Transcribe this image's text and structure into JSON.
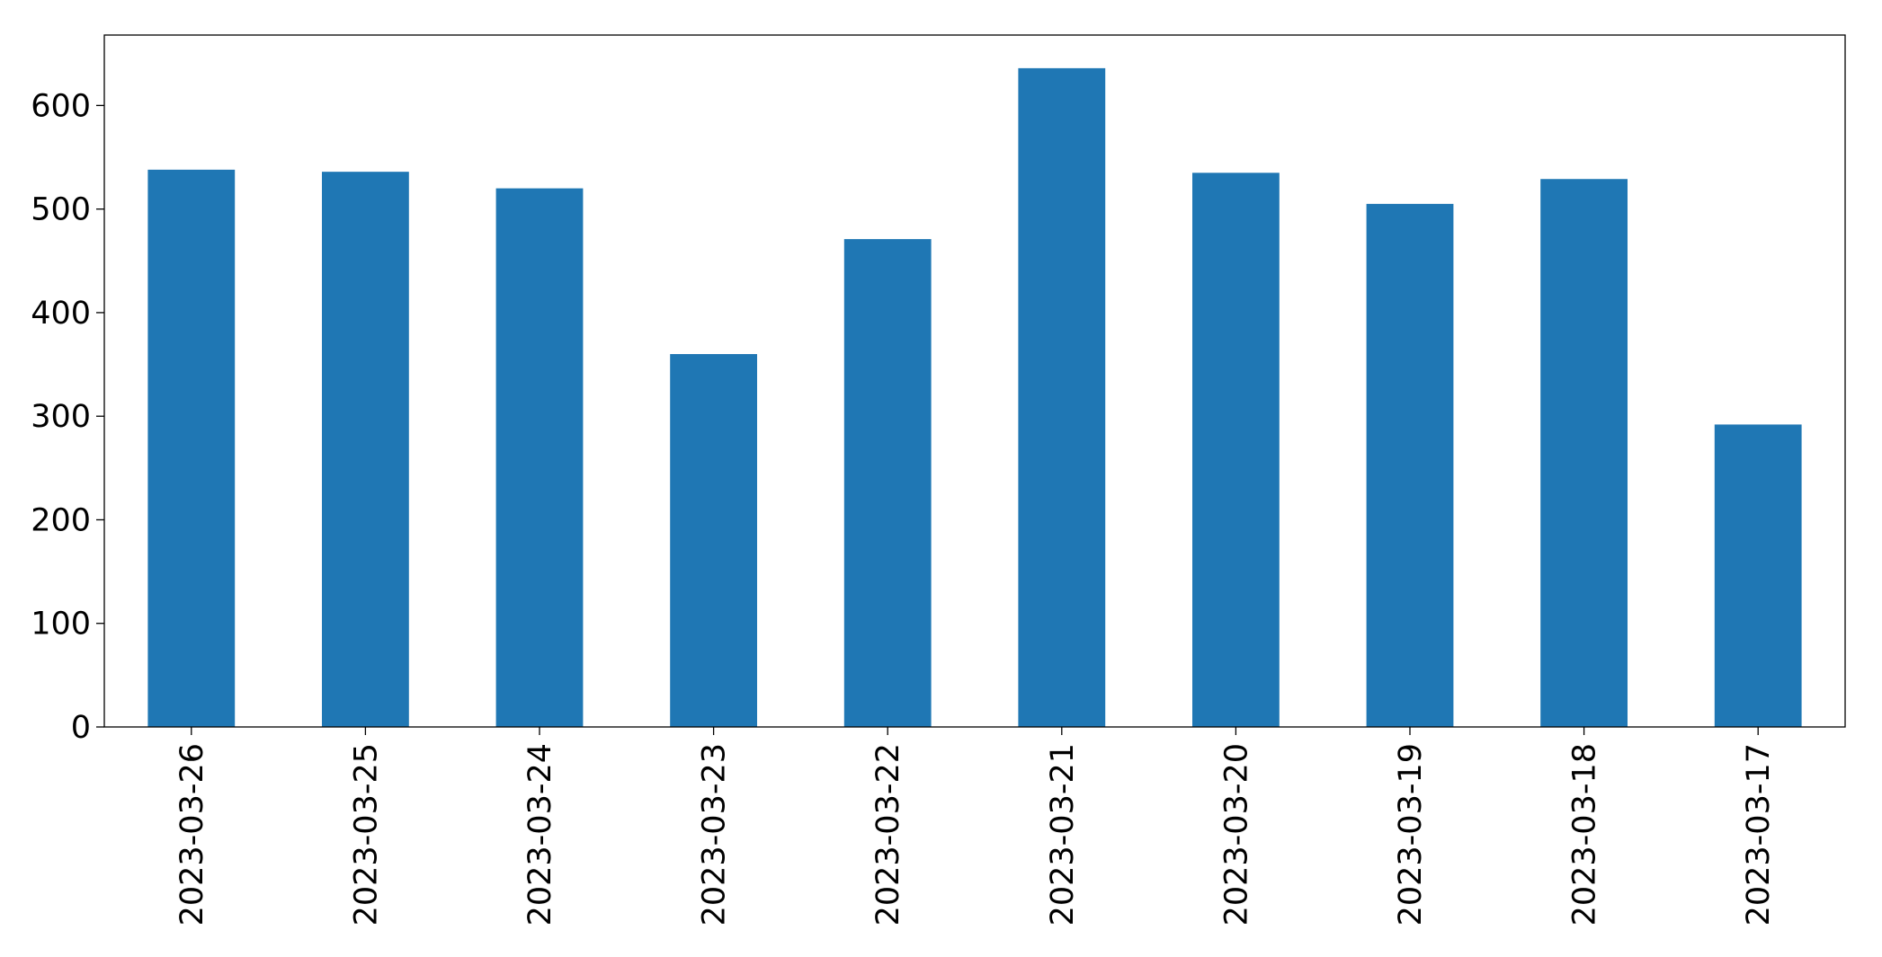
{
  "chart_data": {
    "type": "bar",
    "categories": [
      "2023-03-26",
      "2023-03-25",
      "2023-03-24",
      "2023-03-23",
      "2023-03-22",
      "2023-03-21",
      "2023-03-20",
      "2023-03-19",
      "2023-03-18",
      "2023-03-17"
    ],
    "values": [
      538,
      536,
      520,
      360,
      471,
      636,
      535,
      505,
      529,
      292
    ],
    "color": "#1f77b4",
    "ylim": [
      0,
      668
    ],
    "yticks": [
      0,
      100,
      200,
      300,
      400,
      500,
      600
    ],
    "grid": false
  }
}
